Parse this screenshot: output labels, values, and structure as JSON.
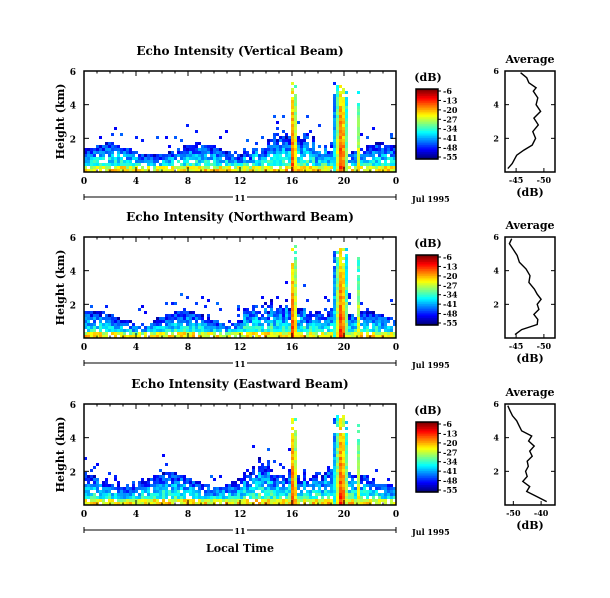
{
  "chart_data": [
    {
      "type": "heatmap",
      "title": "Echo Intensity (Vertical Beam)",
      "ylabel": "Height (km)",
      "x_ticks": [
        "0",
        "4",
        "8",
        "12",
        "16",
        "20",
        "0"
      ],
      "y_ticks": [
        "2",
        "4",
        "6"
      ],
      "xlim": [
        0,
        24
      ],
      "ylim": [
        0,
        6
      ],
      "day_label": "11",
      "date_label": "Jul 1995",
      "colorbar": {
        "unit": "(dB)",
        "ticks": [
          "-6",
          "-13",
          "-20",
          "-27",
          "-34",
          "-41",
          "-48",
          "-55"
        ]
      },
      "surface_top_km": 1.6,
      "storms": [
        {
          "start": 15.7,
          "end": 16.3,
          "top_km": 5.7,
          "peak": -8
        },
        {
          "start": 19.1,
          "end": 20.3,
          "top_km": 5.6,
          "peak": -10
        },
        {
          "start": 20.8,
          "end": 21.2,
          "top_km": 5.0,
          "peak": -25
        }
      ],
      "average_profile": {
        "title": "Average",
        "xlabel": "(dB)",
        "x_ticks": [
          "-45",
          "-50"
        ],
        "y_ticks": [
          "2",
          "4",
          "6"
        ],
        "xlim": [
          -43,
          -52
        ],
        "points": [
          [
            -43.5,
            0.2
          ],
          [
            -44.3,
            0.5
          ],
          [
            -45.1,
            1.0
          ],
          [
            -46.4,
            1.3
          ],
          [
            -47.9,
            1.6
          ],
          [
            -48.5,
            2.0
          ],
          [
            -48.0,
            2.4
          ],
          [
            -49.0,
            2.8
          ],
          [
            -48.2,
            3.2
          ],
          [
            -49.4,
            3.6
          ],
          [
            -48.6,
            4.0
          ],
          [
            -48.9,
            4.4
          ],
          [
            -48.1,
            4.8
          ],
          [
            -48.6,
            5.0
          ],
          [
            -47.3,
            5.3
          ],
          [
            -46.9,
            5.6
          ],
          [
            -45.8,
            5.9
          ]
        ]
      }
    },
    {
      "type": "heatmap",
      "title": "Echo Intensity (Northward Beam)",
      "ylabel": "Height (km)",
      "x_ticks": [
        "0",
        "4",
        "8",
        "12",
        "16",
        "20",
        "0"
      ],
      "y_ticks": [
        "2",
        "4",
        "6"
      ],
      "xlim": [
        0,
        24
      ],
      "ylim": [
        0,
        6
      ],
      "day_label": "11",
      "date_label": "Jul 1995",
      "colorbar": {
        "unit": "(dB)",
        "ticks": [
          "-6",
          "-13",
          "-20",
          "-27",
          "-34",
          "-41",
          "-48",
          "-55"
        ]
      },
      "surface_top_km": 1.5,
      "storms": [
        {
          "start": 15.7,
          "end": 16.3,
          "top_km": 5.6,
          "peak": -8
        },
        {
          "start": 19.1,
          "end": 20.3,
          "top_km": 5.6,
          "peak": -10
        },
        {
          "start": 20.8,
          "end": 21.2,
          "top_km": 5.0,
          "peak": -25
        }
      ],
      "average_profile": {
        "title": "Average",
        "xlabel": "(dB)",
        "x_ticks": [
          "-45",
          "-50"
        ],
        "y_ticks": [
          "2",
          "4",
          "6"
        ],
        "xlim": [
          -43,
          -52
        ],
        "points": [
          [
            -44.8,
            0.2
          ],
          [
            -46.0,
            0.5
          ],
          [
            -48.8,
            0.8
          ],
          [
            -48.9,
            1.1
          ],
          [
            -48.2,
            1.4
          ],
          [
            -49.1,
            1.7
          ],
          [
            -48.8,
            2.0
          ],
          [
            -49.5,
            2.3
          ],
          [
            -48.8,
            2.6
          ],
          [
            -48.3,
            2.9
          ],
          [
            -47.3,
            3.3
          ],
          [
            -47.5,
            3.7
          ],
          [
            -46.8,
            4.1
          ],
          [
            -45.6,
            4.5
          ],
          [
            -45.2,
            4.9
          ],
          [
            -44.4,
            5.3
          ],
          [
            -43.8,
            5.6
          ],
          [
            -44.2,
            5.9
          ]
        ]
      }
    },
    {
      "type": "heatmap",
      "title": "Echo Intensity (Eastward Beam)",
      "ylabel": "Height (km)",
      "x_ticks": [
        "0",
        "4",
        "8",
        "12",
        "16",
        "20",
        "0"
      ],
      "y_ticks": [
        "2",
        "4",
        "6"
      ],
      "xlim": [
        0,
        24
      ],
      "ylim": [
        0,
        6
      ],
      "day_label": "11",
      "date_label": "Jul 1995",
      "xlabel": "Local Time",
      "colorbar": {
        "unit": "(dB)",
        "ticks": [
          "-6",
          "-13",
          "-20",
          "-27",
          "-34",
          "-41",
          "-48",
          "-55"
        ]
      },
      "surface_top_km": 1.8,
      "storms": [
        {
          "start": 15.7,
          "end": 16.3,
          "top_km": 5.6,
          "peak": -8
        },
        {
          "start": 19.1,
          "end": 20.3,
          "top_km": 5.6,
          "peak": -10
        },
        {
          "start": 20.8,
          "end": 21.2,
          "top_km": 5.0,
          "peak": -25
        }
      ],
      "average_profile": {
        "title": "Average",
        "xlabel": "(dB)",
        "x_ticks": [
          "-50",
          "-40"
        ],
        "y_ticks": [
          "2",
          "4",
          "6"
        ],
        "xlim": [
          -53,
          -35
        ],
        "points": [
          [
            -38.0,
            0.2
          ],
          [
            -41.5,
            0.5
          ],
          [
            -45.2,
            0.8
          ],
          [
            -44.1,
            1.1
          ],
          [
            -46.6,
            1.4
          ],
          [
            -45.0,
            1.7
          ],
          [
            -45.6,
            2.0
          ],
          [
            -44.6,
            2.3
          ],
          [
            -45.0,
            2.6
          ],
          [
            -43.2,
            2.9
          ],
          [
            -44.1,
            3.2
          ],
          [
            -42.5,
            3.5
          ],
          [
            -44.5,
            3.8
          ],
          [
            -43.4,
            4.1
          ],
          [
            -47.0,
            4.4
          ],
          [
            -47.9,
            4.7
          ],
          [
            -48.8,
            5.0
          ],
          [
            -50.3,
            5.3
          ],
          [
            -51.2,
            5.6
          ],
          [
            -52.0,
            5.9
          ]
        ]
      }
    }
  ]
}
